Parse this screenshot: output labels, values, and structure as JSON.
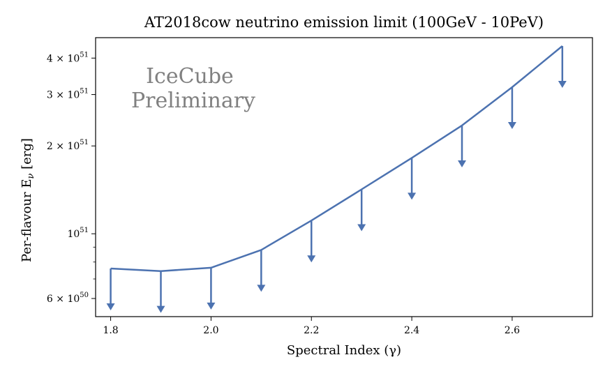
{
  "chart_data": {
    "type": "line",
    "title": "AT2018cow neutrino emission limit (100GeV - 10PeV)",
    "xlabel": "Spectral Index (γ)",
    "ylabel_main": "Per-flavour E",
    "ylabel_sub": "ν",
    "ylabel_unit": " [erg]",
    "yscale": "log",
    "xlim": [
      1.77,
      2.76
    ],
    "ylim": [
      5.2e+50,
      4.7e+51
    ],
    "x": [
      1.8,
      1.9,
      2.0,
      2.1,
      2.2,
      2.3,
      2.4,
      2.5,
      2.6,
      2.7
    ],
    "series": [
      {
        "values": [
          7.6e+50,
          7.45e+50,
          7.65e+50,
          8.8e+50,
          1.11e+51,
          1.42e+51,
          1.82e+51,
          2.35e+51,
          3.18e+51,
          4.4e+51
        ],
        "style": "upper-limit arrows",
        "color": "#4c72b0"
      }
    ],
    "x_ticks": [
      {
        "value": 1.8,
        "label": "1.8"
      },
      {
        "value": 2.0,
        "label": "2.0"
      },
      {
        "value": 2.2,
        "label": "2.2"
      },
      {
        "value": 2.4,
        "label": "2.4"
      },
      {
        "value": 2.6,
        "label": "2.6"
      }
    ],
    "y_ticks": [
      {
        "value": 6e+50,
        "mant": "6 × 10",
        "exp": "50"
      },
      {
        "value": 1e+51,
        "mant": "10",
        "exp": "51"
      },
      {
        "value": 2e+51,
        "mant": "2 × 10",
        "exp": "51"
      },
      {
        "value": 3e+51,
        "mant": "3 × 10",
        "exp": "51"
      },
      {
        "value": 4e+51,
        "mant": "4 × 10",
        "exp": "51"
      }
    ],
    "y_minor_ticks": [
      7e+50,
      8e+50,
      9e+50
    ],
    "annotation": [
      "IceCube",
      "Preliminary"
    ],
    "annotation_color": "#808080",
    "grid": false,
    "legend": "none"
  }
}
